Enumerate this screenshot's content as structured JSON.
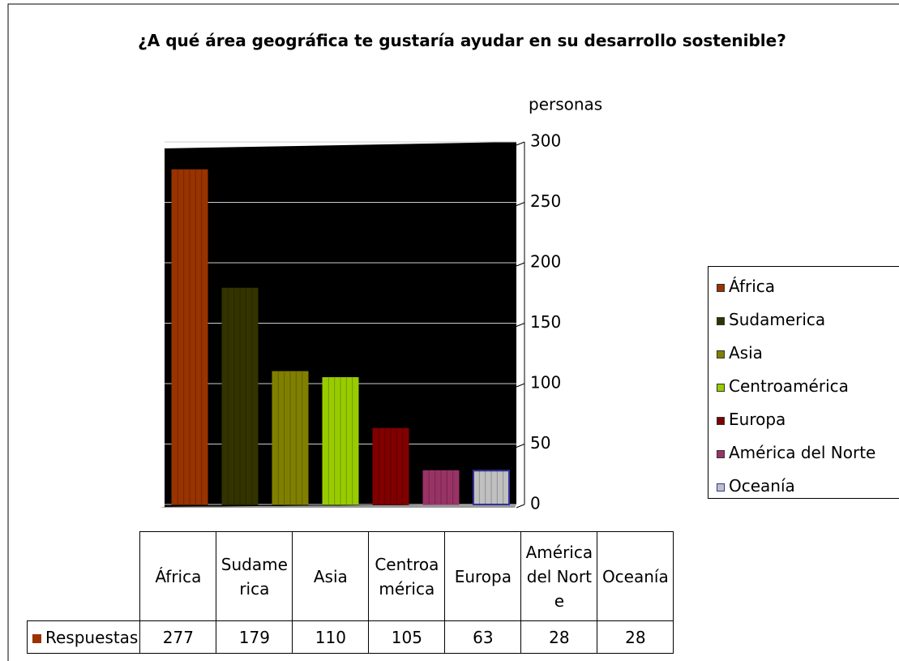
{
  "chart_data": {
    "type": "bar",
    "title": "¿A qué área geográfica te gustaría ayudar en su desarrollo sostenible?",
    "ylabel": "personas",
    "categories": [
      "África",
      "Sudamerica",
      "Asia",
      "Centroamérica",
      "Europa",
      "América del Norte",
      "Oceanía"
    ],
    "series": [
      {
        "name": "Respuestas",
        "color": "#993300",
        "values": [
          277,
          179,
          110,
          105,
          63,
          28,
          28
        ]
      }
    ],
    "colors": [
      "#993300",
      "#333300",
      "#808000",
      "#99cc00",
      "#800000",
      "#993366",
      "#c0c0c0"
    ],
    "ylim": [
      0,
      300
    ],
    "yticks": [
      0,
      50,
      100,
      150,
      200,
      250,
      300
    ],
    "grid": true,
    "legend": "right"
  }
}
